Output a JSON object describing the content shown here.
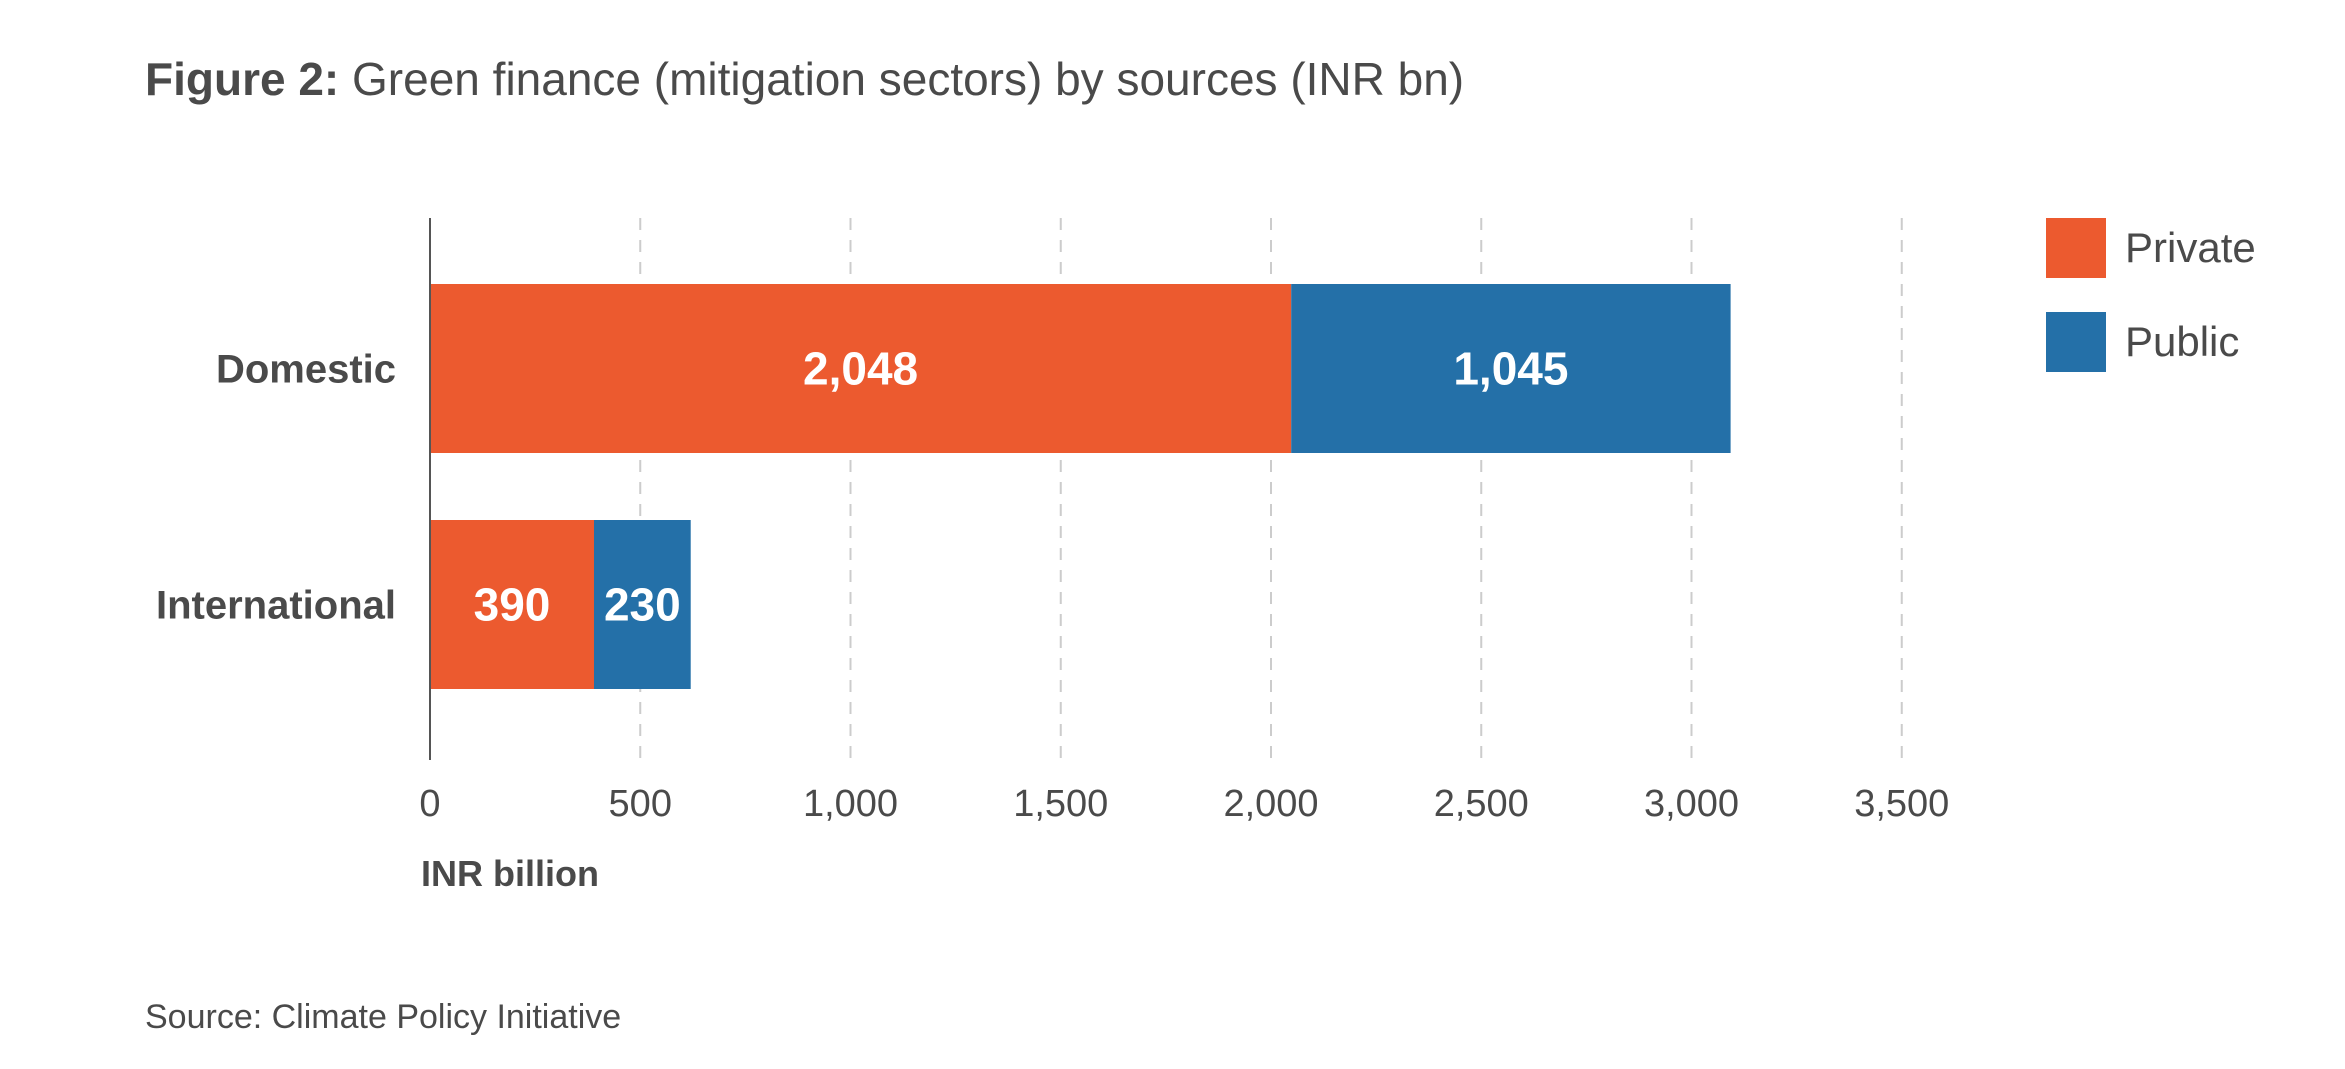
{
  "header": {
    "prefix": "Figure 2:",
    "title": "Green finance (mitigation sectors) by sources (INR bn)"
  },
  "footer": {
    "source": "Source: Climate Policy Initiative"
  },
  "chart_data": {
    "type": "bar",
    "orientation": "horizontal",
    "stacked": true,
    "title": "Green finance (mitigation sectors) by sources (INR bn)",
    "categories": [
      "Domestic",
      "International"
    ],
    "series": [
      {
        "name": "Private",
        "values": [
          2048,
          390
        ],
        "color": "#ec5a2f",
        "labels": [
          "2,048",
          "390"
        ]
      },
      {
        "name": "Public",
        "values": [
          1045,
          230
        ],
        "color": "#2470a8",
        "labels": [
          "1,045",
          "230"
        ]
      }
    ],
    "xlabel": "INR billion",
    "ylabel": "",
    "xlim": [
      0,
      3500
    ],
    "xticks": [
      0,
      500,
      1000,
      1500,
      2000,
      2500,
      3000,
      3500
    ],
    "xtick_labels": [
      "0",
      "500",
      "1,000",
      "1,500",
      "2,000",
      "2,500",
      "3,000",
      "3,500"
    ],
    "grid": "vertical dashed",
    "legend_position": "top-right"
  }
}
